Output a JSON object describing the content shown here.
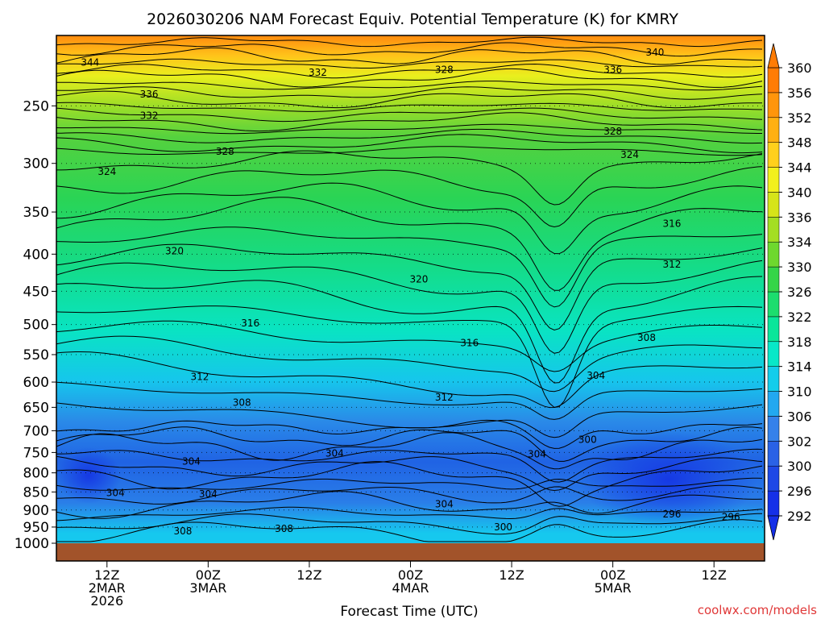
{
  "chart_data": {
    "type": "heatmap",
    "title": "2026030206 NAM Forecast Equiv. Potential Temperature (K) for KMRY",
    "xlabel": "Forecast Time (UTC)",
    "ylabel": "",
    "credit": "coolwx.com/models",
    "ylim": [
      1000,
      200
    ],
    "y_ticks": [
      250,
      300,
      350,
      400,
      450,
      500,
      550,
      600,
      650,
      700,
      750,
      800,
      850,
      900,
      950,
      1000
    ],
    "x_range_hours": [
      0,
      84
    ],
    "x_ticks": [
      {
        "hour": 6,
        "lines": [
          "12Z",
          "2MAR",
          "2026"
        ]
      },
      {
        "hour": 18,
        "lines": [
          "00Z",
          "3MAR"
        ]
      },
      {
        "hour": 30,
        "lines": [
          "12Z"
        ]
      },
      {
        "hour": 42,
        "lines": [
          "00Z",
          "4MAR"
        ]
      },
      {
        "hour": 54,
        "lines": [
          "12Z"
        ]
      },
      {
        "hour": 66,
        "lines": [
          "00Z",
          "5MAR"
        ]
      },
      {
        "hour": 78,
        "lines": [
          "12Z"
        ]
      }
    ],
    "colorbar": {
      "levels": [
        292,
        296,
        300,
        302,
        306,
        310,
        314,
        318,
        322,
        326,
        330,
        334,
        336,
        340,
        344,
        348,
        352,
        356,
        360
      ],
      "colors": [
        "#1530e8",
        "#1e48e6",
        "#2a62e6",
        "#3581ea",
        "#22a8f0",
        "#14cdeb",
        "#08e8c8",
        "#0ae69a",
        "#1cdd6e",
        "#35d548",
        "#6ed82e",
        "#a4de22",
        "#d6e419",
        "#f2f01c",
        "#ffd01c",
        "#ffb011",
        "#ff950b",
        "#ff7c05",
        "#ff7c05"
      ]
    },
    "contour_labels": [
      {
        "value": "344",
        "hour": 4,
        "p": 218
      },
      {
        "value": "336",
        "hour": 11,
        "p": 241
      },
      {
        "value": "332",
        "hour": 11,
        "p": 258
      },
      {
        "value": "332",
        "hour": 31,
        "p": 225
      },
      {
        "value": "328",
        "hour": 46,
        "p": 223
      },
      {
        "value": "340",
        "hour": 71,
        "p": 211
      },
      {
        "value": "336",
        "hour": 66,
        "p": 223
      },
      {
        "value": "328",
        "hour": 66,
        "p": 271
      },
      {
        "value": "328",
        "hour": 20,
        "p": 289
      },
      {
        "value": "324",
        "hour": 68,
        "p": 292
      },
      {
        "value": "324",
        "hour": 6,
        "p": 308
      },
      {
        "value": "320",
        "hour": 14,
        "p": 396
      },
      {
        "value": "316",
        "hour": 73,
        "p": 363
      },
      {
        "value": "312",
        "hour": 73,
        "p": 413
      },
      {
        "value": "320",
        "hour": 43,
        "p": 433
      },
      {
        "value": "316",
        "hour": 23,
        "p": 498
      },
      {
        "value": "316",
        "hour": 49,
        "p": 530
      },
      {
        "value": "308",
        "hour": 70,
        "p": 521
      },
      {
        "value": "312",
        "hour": 17,
        "p": 590
      },
      {
        "value": "304",
        "hour": 64,
        "p": 588
      },
      {
        "value": "308",
        "hour": 22,
        "p": 640
      },
      {
        "value": "312",
        "hour": 46,
        "p": 630
      },
      {
        "value": "300",
        "hour": 63,
        "p": 720
      },
      {
        "value": "304",
        "hour": 33,
        "p": 752
      },
      {
        "value": "304",
        "hour": 57,
        "p": 754
      },
      {
        "value": "304",
        "hour": 16,
        "p": 772
      },
      {
        "value": "304",
        "hour": 7,
        "p": 852
      },
      {
        "value": "304",
        "hour": 18,
        "p": 856
      },
      {
        "value": "304",
        "hour": 46,
        "p": 883
      },
      {
        "value": "296",
        "hour": 73,
        "p": 912
      },
      {
        "value": "296",
        "hour": 80,
        "p": 920
      },
      {
        "value": "300",
        "hour": 53,
        "p": 950
      },
      {
        "value": "308",
        "hour": 15,
        "p": 962
      },
      {
        "value": "308",
        "hour": 27,
        "p": 955
      }
    ]
  }
}
